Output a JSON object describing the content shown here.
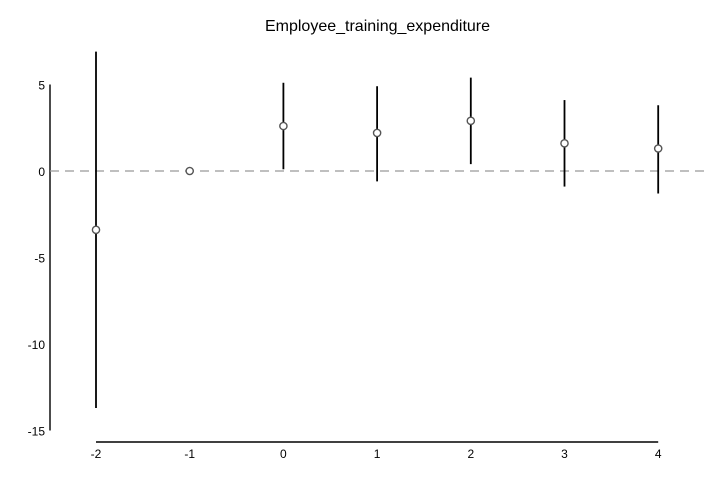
{
  "chart_data": {
    "type": "scatter",
    "title": "Employee_training_expenditure",
    "xlabel": "",
    "ylabel": "",
    "x_ticks": [
      "-2",
      "-1",
      "0",
      "1",
      "2",
      "3",
      "4"
    ],
    "y_ticks": [
      "5",
      "0",
      "-5",
      "-10",
      "-15"
    ],
    "ylim": [
      -15,
      5
    ],
    "reference_line": {
      "y": 0,
      "style": "dashed",
      "color": "#999999"
    },
    "series": [
      {
        "points": [
          {
            "x": -2,
            "y": -3.4,
            "ci_low": -13.7,
            "ci_high": 6.9
          },
          {
            "x": -1,
            "y": 0.0,
            "ci_low": 0.0,
            "ci_high": 0.0
          },
          {
            "x": 0,
            "y": 2.6,
            "ci_low": 0.1,
            "ci_high": 5.1
          },
          {
            "x": 1,
            "y": 2.2,
            "ci_low": -0.6,
            "ci_high": 4.9
          },
          {
            "x": 2,
            "y": 2.9,
            "ci_low": 0.4,
            "ci_high": 5.4
          },
          {
            "x": 3,
            "y": 1.6,
            "ci_low": -0.9,
            "ci_high": 4.1
          },
          {
            "x": 4,
            "y": 1.3,
            "ci_low": -1.3,
            "ci_high": 3.8
          }
        ]
      }
    ]
  }
}
